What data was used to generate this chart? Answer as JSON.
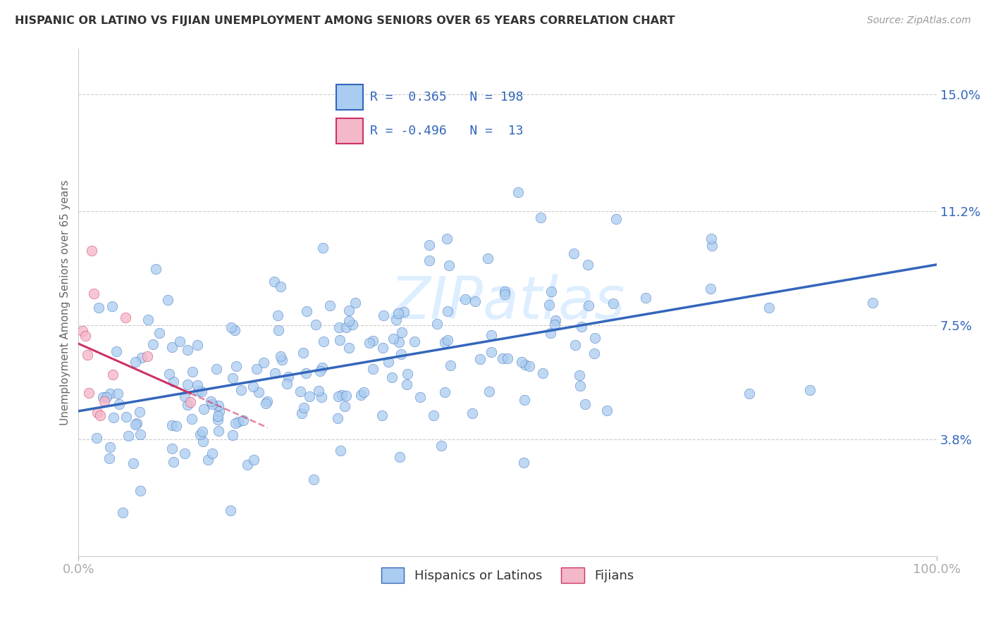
{
  "title": "HISPANIC OR LATINO VS FIJIAN UNEMPLOYMENT AMONG SENIORS OVER 65 YEARS CORRELATION CHART",
  "source": "Source: ZipAtlas.com",
  "ylabel": "Unemployment Among Seniors over 65 years",
  "xlim": [
    0.0,
    1.0
  ],
  "ylim": [
    0.0,
    0.165
  ],
  "xticklabels": [
    "0.0%",
    "100.0%"
  ],
  "ytick_positions": [
    0.038,
    0.075,
    0.112,
    0.15
  ],
  "ytick_labels": [
    "3.8%",
    "7.5%",
    "11.2%",
    "15.0%"
  ],
  "r_hispanic": 0.365,
  "n_hispanic": 198,
  "r_fijian": -0.496,
  "n_fijian": 13,
  "color_hispanic": "#aaccf0",
  "color_fijian": "#f4b8c8",
  "color_hispanic_line": "#3366bb",
  "color_fijian_line": "#cc3366",
  "legend_label_hispanic": "Hispanics or Latinos",
  "legend_label_fijian": "Fijians",
  "background_color": "#ffffff",
  "grid_color": "#cccccc",
  "title_color": "#333333",
  "axis_label_color": "#666666",
  "tick_label_color": "#3366bb",
  "stats_color": "#3366bb",
  "watermark_color": "#ddeeff",
  "watermark_text": "ZIPatlas"
}
